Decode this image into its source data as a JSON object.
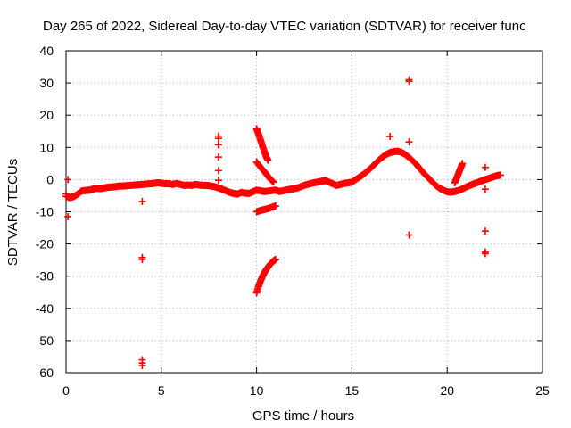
{
  "chart_data": {
    "type": "scatter",
    "title": "Day 265 of 2022, Sidereal Day-to-day VTEC variation (SDTVAR) for receiver func",
    "xlabel": "GPS time / hours",
    "ylabel": "SDTVAR / TECUs",
    "xlim": [
      0,
      25
    ],
    "ylim": [
      -60,
      40
    ],
    "xticks": [
      0,
      5,
      10,
      15,
      20,
      25
    ],
    "yticks": [
      -60,
      -50,
      -40,
      -30,
      -20,
      -10,
      0,
      10,
      20,
      30,
      40
    ],
    "grid": true,
    "marker": "+",
    "color": "#ff0000",
    "series": [
      {
        "name": "main_trend",
        "points": [
          [
            0.0,
            -5.2
          ],
          [
            0.2,
            -5.6
          ],
          [
            0.4,
            -5.3
          ],
          [
            0.6,
            -4.6
          ],
          [
            0.8,
            -3.6
          ],
          [
            1.0,
            -3.4
          ],
          [
            1.2,
            -3.3
          ],
          [
            1.4,
            -3.0
          ],
          [
            1.6,
            -2.7
          ],
          [
            1.8,
            -2.8
          ],
          [
            2.0,
            -2.6
          ],
          [
            2.2,
            -2.4
          ],
          [
            2.4,
            -2.3
          ],
          [
            2.6,
            -2.2
          ],
          [
            2.8,
            -2.0
          ],
          [
            3.0,
            -2.0
          ],
          [
            3.2,
            -1.9
          ],
          [
            3.4,
            -1.8
          ],
          [
            3.6,
            -1.7
          ],
          [
            3.8,
            -1.6
          ],
          [
            4.0,
            -1.5
          ],
          [
            4.2,
            -1.4
          ],
          [
            4.4,
            -1.3
          ],
          [
            4.6,
            -1.2
          ],
          [
            4.8,
            -1.0
          ],
          [
            5.0,
            -1.1
          ],
          [
            5.2,
            -1.3
          ],
          [
            5.4,
            -1.3
          ],
          [
            5.6,
            -1.5
          ],
          [
            5.8,
            -1.2
          ],
          [
            6.0,
            -1.5
          ],
          [
            6.2,
            -1.8
          ],
          [
            6.4,
            -1.7
          ],
          [
            6.6,
            -1.8
          ],
          [
            6.8,
            -1.5
          ],
          [
            7.0,
            -1.7
          ],
          [
            7.2,
            -1.8
          ],
          [
            7.4,
            -1.8
          ],
          [
            7.6,
            -2.0
          ],
          [
            7.8,
            -2.2
          ],
          [
            8.0,
            -2.6
          ],
          [
            8.2,
            -3.0
          ],
          [
            8.4,
            -3.5
          ],
          [
            8.6,
            -4.0
          ],
          [
            8.8,
            -4.3
          ],
          [
            9.0,
            -4.5
          ],
          [
            9.2,
            -4.0
          ],
          [
            9.4,
            -4.2
          ],
          [
            9.6,
            -4.3
          ],
          [
            9.8,
            -3.8
          ],
          [
            10.0,
            -3.3
          ],
          [
            10.2,
            -3.5
          ],
          [
            10.4,
            -3.7
          ],
          [
            10.6,
            -3.6
          ],
          [
            10.8,
            -3.4
          ],
          [
            11.0,
            -3.3
          ],
          [
            11.2,
            -3.7
          ],
          [
            11.4,
            -3.5
          ],
          [
            11.6,
            -3.2
          ],
          [
            11.8,
            -3.0
          ],
          [
            12.0,
            -2.8
          ],
          [
            12.2,
            -2.5
          ],
          [
            12.4,
            -2.0
          ],
          [
            12.6,
            -1.6
          ],
          [
            12.8,
            -1.3
          ],
          [
            13.0,
            -1.0
          ],
          [
            13.2,
            -0.8
          ],
          [
            13.4,
            -0.5
          ],
          [
            13.6,
            -0.3
          ],
          [
            13.8,
            -0.8
          ],
          [
            14.0,
            -1.3
          ],
          [
            14.2,
            -1.8
          ],
          [
            14.4,
            -1.5
          ],
          [
            14.6,
            -1.2
          ],
          [
            14.8,
            -1.0
          ],
          [
            15.0,
            -0.8
          ],
          [
            15.2,
            0.0
          ],
          [
            15.4,
            0.8
          ],
          [
            15.6,
            1.6
          ],
          [
            15.8,
            2.6
          ],
          [
            16.0,
            3.6
          ],
          [
            16.2,
            4.8
          ],
          [
            16.4,
            6.0
          ],
          [
            16.6,
            7.0
          ],
          [
            16.8,
            7.8
          ],
          [
            17.0,
            8.4
          ],
          [
            17.2,
            8.7
          ],
          [
            17.4,
            8.8
          ],
          [
            17.6,
            8.5
          ],
          [
            17.8,
            7.8
          ],
          [
            18.0,
            6.9
          ],
          [
            18.2,
            5.8
          ],
          [
            18.4,
            4.6
          ],
          [
            18.6,
            3.2
          ],
          [
            18.8,
            1.8
          ],
          [
            19.0,
            0.6
          ],
          [
            19.2,
            -0.6
          ],
          [
            19.4,
            -1.8
          ],
          [
            19.6,
            -2.7
          ],
          [
            19.8,
            -3.3
          ],
          [
            20.0,
            -3.8
          ],
          [
            20.2,
            -3.9
          ],
          [
            20.4,
            -3.7
          ],
          [
            20.6,
            -3.4
          ],
          [
            20.8,
            -2.9
          ],
          [
            21.0,
            -2.3
          ],
          [
            21.2,
            -1.8
          ],
          [
            21.4,
            -1.3
          ],
          [
            21.6,
            -0.9
          ],
          [
            21.8,
            -0.4
          ],
          [
            22.0,
            0.0
          ],
          [
            22.2,
            0.4
          ],
          [
            22.4,
            0.8
          ],
          [
            22.6,
            1.2
          ],
          [
            22.8,
            1.4
          ]
        ]
      },
      {
        "name": "arc_positive",
        "points": [
          [
            10.0,
            15.8
          ],
          [
            10.1,
            14.2
          ],
          [
            10.2,
            12.4
          ],
          [
            10.3,
            10.6
          ],
          [
            10.4,
            8.8
          ],
          [
            10.5,
            7.2
          ],
          [
            10.6,
            6.0
          ]
        ]
      },
      {
        "name": "arc_mid",
        "points": [
          [
            10.0,
            5.5
          ],
          [
            10.15,
            4.3
          ],
          [
            10.3,
            3.2
          ],
          [
            10.45,
            2.2
          ],
          [
            10.6,
            1.0
          ],
          [
            10.75,
            0.0
          ],
          [
            10.9,
            -0.8
          ]
        ]
      },
      {
        "name": "arc_minus10",
        "points": [
          [
            10.0,
            -10.0
          ],
          [
            10.2,
            -9.6
          ],
          [
            10.4,
            -9.3
          ],
          [
            10.6,
            -9.0
          ],
          [
            10.8,
            -8.6
          ],
          [
            11.0,
            -8.2
          ]
        ]
      },
      {
        "name": "arc_negative",
        "points": [
          [
            10.0,
            -35.2
          ],
          [
            10.1,
            -33.2
          ],
          [
            10.2,
            -31.6
          ],
          [
            10.3,
            -30.2
          ],
          [
            10.4,
            -29.0
          ],
          [
            10.5,
            -28.0
          ],
          [
            10.6,
            -27.2
          ],
          [
            10.7,
            -26.4
          ],
          [
            10.8,
            -25.8
          ],
          [
            10.9,
            -25.2
          ],
          [
            11.0,
            -24.8
          ]
        ]
      },
      {
        "name": "arc_20h",
        "points": [
          [
            20.4,
            -1.0
          ],
          [
            20.5,
            0.5
          ],
          [
            20.6,
            2.0
          ],
          [
            20.7,
            3.5
          ],
          [
            20.8,
            5.0
          ]
        ]
      },
      {
        "name": "outliers",
        "points": [
          [
            0.1,
            0.0
          ],
          [
            0.1,
            -11.5
          ],
          [
            0.0,
            -4.5
          ],
          [
            4.0,
            -6.8
          ],
          [
            4.0,
            -24.2
          ],
          [
            4.0,
            -24.8
          ],
          [
            4.0,
            -56.0
          ],
          [
            4.0,
            -57.0
          ],
          [
            4.0,
            -57.8
          ],
          [
            8.0,
            13.5
          ],
          [
            8.0,
            12.8
          ],
          [
            8.0,
            10.8
          ],
          [
            8.0,
            7.0
          ],
          [
            8.0,
            2.8
          ],
          [
            8.0,
            -0.2
          ],
          [
            17.0,
            13.4
          ],
          [
            18.0,
            30.5
          ],
          [
            18.0,
            31.0
          ],
          [
            18.0,
            11.7
          ],
          [
            18.0,
            -17.2
          ],
          [
            22.0,
            3.8
          ],
          [
            22.0,
            -3.0
          ],
          [
            22.0,
            -16.0
          ],
          [
            22.0,
            -22.5
          ],
          [
            22.0,
            -23.0
          ]
        ]
      }
    ]
  }
}
